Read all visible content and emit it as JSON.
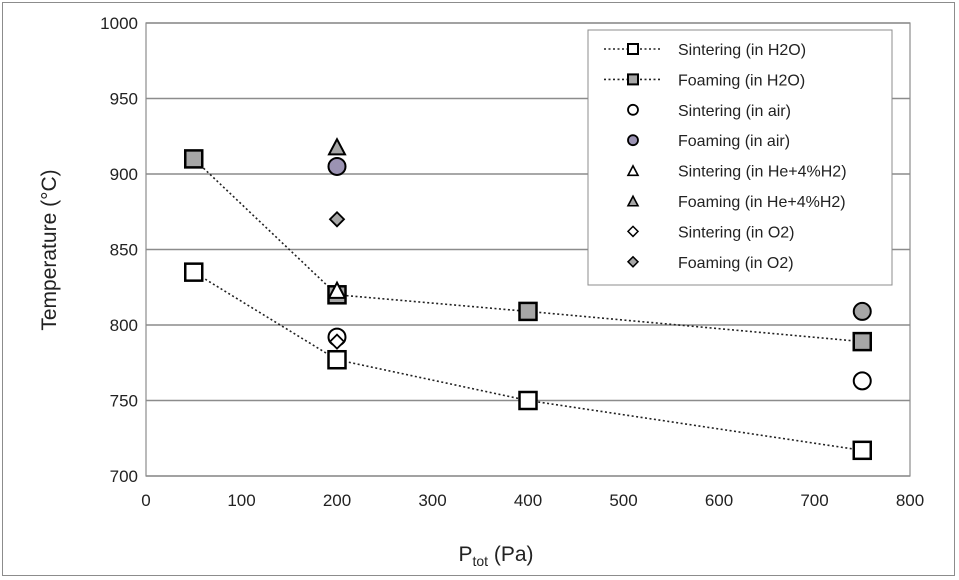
{
  "chart_data": {
    "type": "scatter",
    "title": "",
    "xlabel_main": "P",
    "xlabel_sub": "tot",
    "xlabel_unit": " (Pa)",
    "ylabel": "Temperature (°C)",
    "xlim": [
      0,
      800
    ],
    "ylim": [
      700,
      1000
    ],
    "x_ticks": [
      0,
      100,
      200,
      300,
      400,
      500,
      600,
      700,
      800
    ],
    "y_ticks": [
      700,
      750,
      800,
      850,
      900,
      950,
      1000
    ],
    "grid": "horizontal",
    "legend_position": "top-right",
    "colors": {
      "grey_fill": "#a6a6a6",
      "purple_grey": "#9b93b3",
      "stroke": "#000000",
      "grid": "#8c8c8c"
    },
    "series": [
      {
        "name": "Sintering (in H2O)",
        "marker": "square",
        "fill": "#ffffff",
        "line": "dotted",
        "x": [
          50,
          200,
          400,
          750
        ],
        "y": [
          835,
          777,
          750,
          717
        ]
      },
      {
        "name": "Foaming (in H2O)",
        "marker": "square",
        "fill": "#a6a6a6",
        "line": "dotted",
        "x": [
          50,
          200,
          400,
          750
        ],
        "y": [
          910,
          820,
          809,
          789
        ]
      },
      {
        "name": "Sintering (in air)",
        "marker": "circle",
        "fill": "#ffffff",
        "line": "none",
        "x": [
          200,
          750
        ],
        "y": [
          792,
          763
        ]
      },
      {
        "name": "Foaming (in air)",
        "marker": "circle",
        "fill": "#a6a6a6",
        "line": "none",
        "x": [
          200,
          750
        ],
        "y": [
          905,
          809
        ]
      },
      {
        "name": "Sintering (in He+4%H2)",
        "marker": "triangle",
        "fill": "#ffffff",
        "line": "none",
        "x": [
          200
        ],
        "y": [
          823
        ]
      },
      {
        "name": "Foaming (in He+4%H2)",
        "marker": "triangle",
        "fill": "#a6a6a6",
        "line": "none",
        "x": [
          200
        ],
        "y": [
          918
        ]
      },
      {
        "name": "Sintering (in O2)",
        "marker": "diamond",
        "fill": "#ffffff",
        "line": "none",
        "x": [
          200
        ],
        "y": [
          789
        ]
      },
      {
        "name": "Foaming (in O2)",
        "marker": "diamond",
        "fill": "#a6a6a6",
        "line": "none",
        "x": [
          200
        ],
        "y": [
          870
        ]
      }
    ]
  }
}
